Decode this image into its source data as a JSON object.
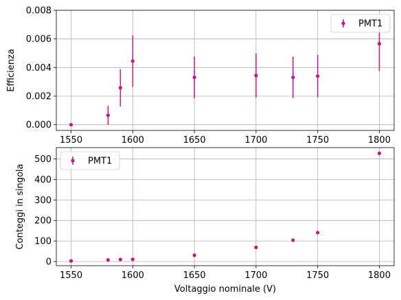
{
  "chart_data": [
    {
      "type": "scatter",
      "xlabel": "",
      "ylabel": "Efficienza",
      "xlim": [
        1538,
        1812
      ],
      "ylim": [
        -0.0004,
        0.008
      ],
      "xticks": [
        1550,
        1600,
        1650,
        1700,
        1750,
        1800
      ],
      "xtick_labels": [
        "1550",
        "1600",
        "1650",
        "1700",
        "1750",
        "1800"
      ],
      "yticks": [
        0.0,
        0.002,
        0.004,
        0.006,
        0.008
      ],
      "ytick_labels": [
        "0.000",
        "0.002",
        "0.004",
        "0.006",
        "0.008"
      ],
      "grid": true,
      "legend_position": "top-right",
      "series": [
        {
          "name": "PMT1",
          "color": "#c71585",
          "marker": "circle",
          "error_bars": true,
          "x": [
            1550,
            1580,
            1590,
            1600,
            1650,
            1700,
            1730,
            1750,
            1800
          ],
          "y": [
            0.0,
            0.00066,
            0.00258,
            0.00445,
            0.00331,
            0.00344,
            0.00331,
            0.0034,
            0.00566
          ],
          "yerr": [
            0.0,
            0.00066,
            0.0013,
            0.0018,
            0.00146,
            0.00155,
            0.00144,
            0.00148,
            0.0019
          ]
        }
      ]
    },
    {
      "type": "scatter",
      "xlabel": "Voltaggio nominale (V)",
      "ylabel": "Conteggi in singola",
      "xlim": [
        1538,
        1812
      ],
      "ylim": [
        -20,
        555
      ],
      "xticks": [
        1550,
        1600,
        1650,
        1700,
        1750,
        1800
      ],
      "xtick_labels": [
        "1550",
        "1600",
        "1650",
        "1700",
        "1750",
        "1800"
      ],
      "yticks": [
        0,
        100,
        200,
        300,
        400,
        500
      ],
      "ytick_labels": [
        "0",
        "100",
        "200",
        "300",
        "400",
        "500"
      ],
      "grid": true,
      "legend_position": "top-left",
      "series": [
        {
          "name": "PMT1",
          "color": "#c71585",
          "marker": "circle",
          "error_bars": true,
          "x": [
            1550,
            1580,
            1590,
            1600,
            1650,
            1700,
            1730,
            1750,
            1800
          ],
          "y": [
            3,
            8,
            10,
            11,
            31,
            69,
            104,
            141,
            527
          ],
          "yerr": [
            0,
            0,
            0,
            0,
            0,
            0,
            0,
            0,
            0
          ]
        }
      ]
    }
  ]
}
